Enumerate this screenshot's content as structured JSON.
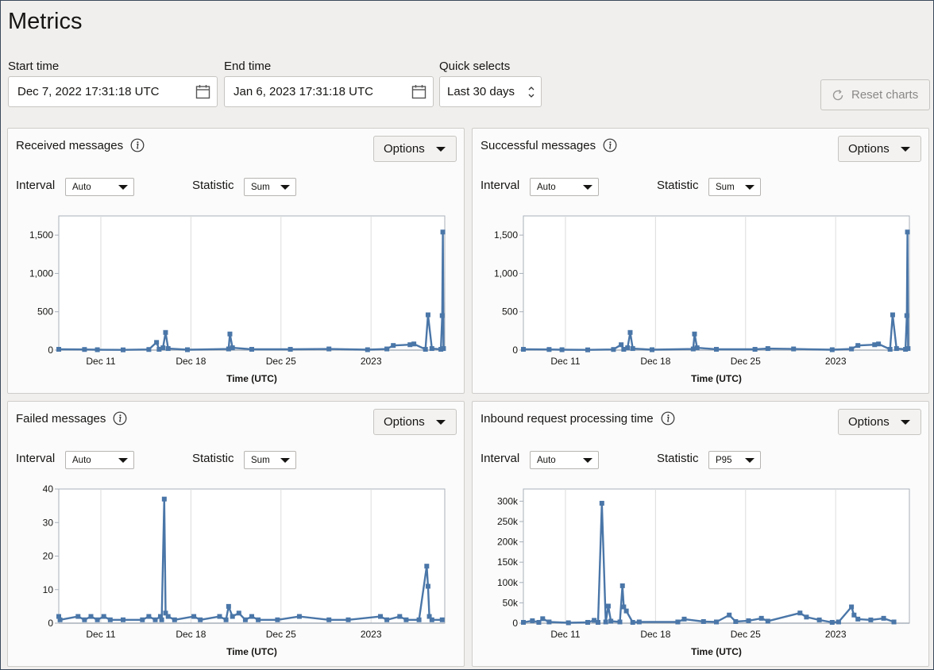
{
  "page": {
    "title": "Metrics"
  },
  "filters": {
    "start_time": {
      "label": "Start time",
      "value": "Dec 7, 2022 17:31:18 UTC"
    },
    "end_time": {
      "label": "End time",
      "value": "Jan 6, 2023 17:31:18 UTC"
    },
    "quick_selects": {
      "label": "Quick selects",
      "value": "Last 30 days"
    },
    "reset_label": "Reset charts"
  },
  "panels": [
    {
      "title": "Received messages",
      "options_label": "Options",
      "interval_label": "Interval",
      "interval_value": "Auto",
      "statistic_label": "Statistic",
      "statistic_value": "Sum"
    },
    {
      "title": "Successful messages",
      "options_label": "Options",
      "interval_label": "Interval",
      "interval_value": "Auto",
      "statistic_label": "Statistic",
      "statistic_value": "Sum"
    },
    {
      "title": "Failed messages",
      "options_label": "Options",
      "interval_label": "Interval",
      "interval_value": "Auto",
      "statistic_label": "Statistic",
      "statistic_value": "Sum"
    },
    {
      "title": "Inbound request processing time",
      "options_label": "Options",
      "interval_label": "Interval",
      "interval_value": "Auto",
      "statistic_label": "Statistic",
      "statistic_value": "P95"
    }
  ],
  "colors": {
    "series": "#4a76a8",
    "grid": "#dcdcdc",
    "axis": "#a8b0ba"
  },
  "chart_data": [
    {
      "type": "line",
      "title": "Received messages",
      "xlabel": "Time (UTC)",
      "ylabel": "",
      "x_ticks": [
        "Dec 11",
        "Dec 18",
        "Dec 25",
        "2023"
      ],
      "y_ticks": [
        "0",
        "500",
        "1,000",
        "1,500"
      ],
      "ylim": [
        0,
        1750
      ],
      "x_range_days": [
        0,
        30
      ],
      "points": [
        [
          0,
          10
        ],
        [
          2,
          8
        ],
        [
          3,
          5
        ],
        [
          5,
          3
        ],
        [
          7,
          8
        ],
        [
          7.6,
          100
        ],
        [
          7.8,
          10
        ],
        [
          8.1,
          30
        ],
        [
          8.3,
          230
        ],
        [
          8.5,
          20
        ],
        [
          10,
          5
        ],
        [
          13.2,
          15
        ],
        [
          13.3,
          210
        ],
        [
          13.5,
          30
        ],
        [
          15,
          10
        ],
        [
          18,
          10
        ],
        [
          21,
          15
        ],
        [
          24,
          5
        ],
        [
          25.5,
          15
        ],
        [
          26,
          60
        ],
        [
          27.3,
          70
        ],
        [
          27.6,
          80
        ],
        [
          28.5,
          10
        ],
        [
          28.7,
          460
        ],
        [
          29,
          20
        ],
        [
          29.7,
          10
        ],
        [
          29.8,
          450
        ],
        [
          29.85,
          1540
        ],
        [
          29.9,
          20
        ]
      ],
      "grid": true
    },
    {
      "type": "line",
      "title": "Successful messages",
      "xlabel": "Time (UTC)",
      "ylabel": "",
      "x_ticks": [
        "Dec 11",
        "Dec 18",
        "Dec 25",
        "2023"
      ],
      "y_ticks": [
        "0",
        "500",
        "1,000",
        "1,500"
      ],
      "ylim": [
        0,
        1750
      ],
      "x_range_days": [
        0,
        30
      ],
      "points": [
        [
          0,
          10
        ],
        [
          2,
          8
        ],
        [
          3,
          5
        ],
        [
          5,
          3
        ],
        [
          7,
          8
        ],
        [
          7.6,
          70
        ],
        [
          7.8,
          10
        ],
        [
          8.1,
          30
        ],
        [
          8.3,
          230
        ],
        [
          8.5,
          20
        ],
        [
          10,
          5
        ],
        [
          13.2,
          15
        ],
        [
          13.3,
          210
        ],
        [
          13.5,
          30
        ],
        [
          15,
          10
        ],
        [
          18,
          10
        ],
        [
          19,
          20
        ],
        [
          21,
          15
        ],
        [
          24,
          5
        ],
        [
          25.5,
          15
        ],
        [
          26,
          60
        ],
        [
          27.3,
          70
        ],
        [
          27.6,
          80
        ],
        [
          28.5,
          10
        ],
        [
          28.7,
          460
        ],
        [
          29,
          20
        ],
        [
          29.7,
          10
        ],
        [
          29.8,
          450
        ],
        [
          29.85,
          1540
        ],
        [
          29.9,
          20
        ]
      ],
      "grid": true
    },
    {
      "type": "line",
      "title": "Failed messages",
      "xlabel": "Time (UTC)",
      "ylabel": "",
      "x_ticks": [
        "Dec 11",
        "Dec 18",
        "Dec 25",
        "2023"
      ],
      "y_ticks": [
        "0",
        "10",
        "20",
        "30",
        "40"
      ],
      "ylim": [
        0,
        40
      ],
      "x_range_days": [
        0,
        30
      ],
      "points": [
        [
          0,
          2
        ],
        [
          0.1,
          1
        ],
        [
          1.5,
          2
        ],
        [
          2,
          1
        ],
        [
          2.5,
          2
        ],
        [
          3,
          1
        ],
        [
          3.5,
          2
        ],
        [
          4,
          1
        ],
        [
          5,
          1
        ],
        [
          6.5,
          1
        ],
        [
          7,
          2
        ],
        [
          7.5,
          1
        ],
        [
          7.9,
          2
        ],
        [
          8,
          1
        ],
        [
          8.2,
          37
        ],
        [
          8.3,
          3
        ],
        [
          8.5,
          2
        ],
        [
          9,
          1
        ],
        [
          10.5,
          2
        ],
        [
          11,
          1
        ],
        [
          12.5,
          2
        ],
        [
          13,
          1
        ],
        [
          13.2,
          5
        ],
        [
          13.5,
          2
        ],
        [
          14,
          3
        ],
        [
          14.5,
          1
        ],
        [
          15,
          2
        ],
        [
          15.5,
          1
        ],
        [
          17,
          1
        ],
        [
          18.7,
          2
        ],
        [
          21,
          1
        ],
        [
          22.5,
          1
        ],
        [
          25,
          2
        ],
        [
          25.5,
          1
        ],
        [
          26.5,
          2
        ],
        [
          27,
          1
        ],
        [
          28,
          1
        ],
        [
          28.6,
          17
        ],
        [
          28.7,
          11
        ],
        [
          28.8,
          2
        ],
        [
          29,
          1
        ],
        [
          29.8,
          1
        ]
      ],
      "grid": true
    },
    {
      "type": "line",
      "title": "Inbound request processing time",
      "xlabel": "Time (UTC)",
      "ylabel": "",
      "x_ticks": [
        "Dec 11",
        "Dec 18",
        "Dec 25",
        "2023"
      ],
      "y_ticks": [
        "0",
        "50k",
        "100k",
        "150k",
        "200k",
        "250k",
        "300k"
      ],
      "ylim": [
        0,
        330000
      ],
      "x_range_days": [
        0,
        30
      ],
      "points": [
        [
          0,
          2000
        ],
        [
          0.7,
          6000
        ],
        [
          1.2,
          2000
        ],
        [
          1.5,
          11000
        ],
        [
          2,
          3000
        ],
        [
          3.5,
          1000
        ],
        [
          5,
          2000
        ],
        [
          5.5,
          7000
        ],
        [
          5.8,
          2000
        ],
        [
          6.1,
          295000
        ],
        [
          6.4,
          3000
        ],
        [
          6.6,
          42000
        ],
        [
          6.8,
          5000
        ],
        [
          7.5,
          3000
        ],
        [
          7.7,
          92000
        ],
        [
          7.8,
          40000
        ],
        [
          8,
          30000
        ],
        [
          8.5,
          2000
        ],
        [
          9,
          3000
        ],
        [
          12,
          3000
        ],
        [
          12.5,
          10000
        ],
        [
          14,
          4000
        ],
        [
          15,
          3000
        ],
        [
          16,
          20000
        ],
        [
          16.5,
          4000
        ],
        [
          17.5,
          6000
        ],
        [
          18.5,
          12000
        ],
        [
          19,
          5000
        ],
        [
          21.5,
          25000
        ],
        [
          22,
          15000
        ],
        [
          23,
          8000
        ],
        [
          24,
          2000
        ],
        [
          24.5,
          3000
        ],
        [
          25.5,
          40000
        ],
        [
          25.7,
          20000
        ],
        [
          26,
          10000
        ],
        [
          27,
          8000
        ],
        [
          28,
          12000
        ],
        [
          28.8,
          3000
        ]
      ],
      "grid": true
    }
  ]
}
